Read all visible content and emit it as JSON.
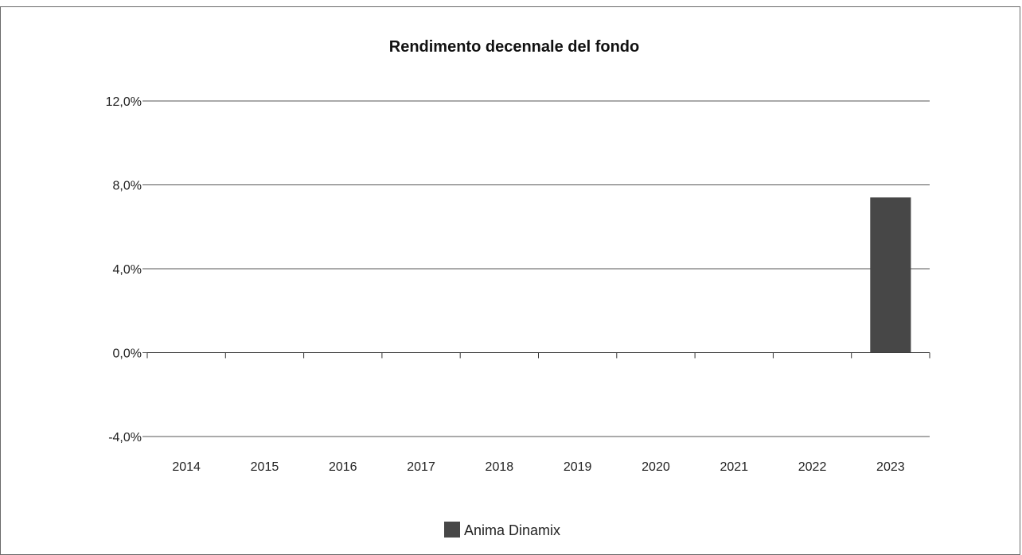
{
  "chart_data": {
    "type": "bar",
    "title": "Rendimento decennale del fondo",
    "categories": [
      "2014",
      "2015",
      "2016",
      "2017",
      "2018",
      "2019",
      "2020",
      "2021",
      "2022",
      "2023"
    ],
    "series": [
      {
        "name": "Anima Dinamix",
        "values": [
          null,
          null,
          null,
          null,
          null,
          null,
          null,
          null,
          null,
          7.4
        ],
        "color": "#474747"
      }
    ],
    "ylim": [
      -4,
      12
    ],
    "yticks": [
      -4,
      0,
      4,
      8,
      12
    ],
    "ytick_labels": [
      "-4,0%",
      "0,0%",
      "4,0%",
      "8,0%",
      "12,0%"
    ],
    "grid": true,
    "legend": "bottom-center"
  }
}
